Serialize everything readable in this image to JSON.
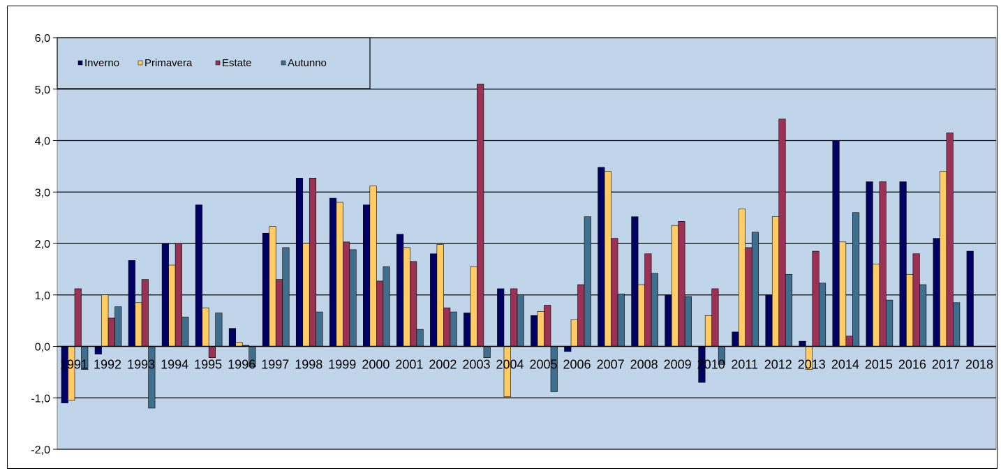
{
  "chart_data": {
    "type": "bar",
    "title": "",
    "xlabel": "",
    "ylabel": "",
    "ylim": [
      -2,
      6
    ],
    "yticks": [
      "6,0",
      "5,0",
      "4,0",
      "3,0",
      "2,0",
      "1,0",
      "0,0",
      "-1,0",
      "-2,0"
    ],
    "ytick_values": [
      6,
      5,
      4,
      3,
      2,
      1,
      0,
      -1,
      -2
    ],
    "grid": true,
    "legend_position": "top-left",
    "plot_background": "#c0d4ea",
    "categories": [
      "1991",
      "1992",
      "1993",
      "1994",
      "1995",
      "1996",
      "1997",
      "1998",
      "1999",
      "2000",
      "2001",
      "2002",
      "2003",
      "2004",
      "2005",
      "2006",
      "2007",
      "2008",
      "2009",
      "2010",
      "2011",
      "2012",
      "2013",
      "2014",
      "2015",
      "2016",
      "2017",
      "2018"
    ],
    "series": [
      {
        "name": "Inverno",
        "color": "#000066",
        "values": [
          -1.1,
          -0.15,
          1.67,
          2.0,
          2.75,
          0.35,
          2.2,
          3.27,
          2.88,
          2.75,
          2.18,
          1.8,
          0.65,
          1.12,
          0.6,
          -0.1,
          3.48,
          2.52,
          1.0,
          -0.7,
          0.28,
          1.0,
          0.1,
          4.0,
          3.2,
          3.2,
          2.1,
          1.85
        ]
      },
      {
        "name": "Primavera",
        "color": "#ffcc66",
        "values": [
          -1.05,
          1.0,
          0.85,
          1.58,
          0.75,
          0.08,
          2.33,
          2.0,
          2.8,
          3.12,
          1.92,
          1.98,
          1.55,
          -0.98,
          0.68,
          0.52,
          3.4,
          1.2,
          2.35,
          0.6,
          2.67,
          2.52,
          -0.45,
          2.03,
          1.6,
          1.4,
          3.4,
          null
        ]
      },
      {
        "name": "Estate",
        "color": "#993355",
        "values": [
          1.12,
          0.55,
          1.3,
          2.0,
          -0.22,
          0.02,
          1.3,
          3.27,
          2.03,
          1.27,
          1.65,
          0.75,
          5.1,
          1.12,
          0.8,
          1.2,
          2.1,
          1.8,
          2.43,
          1.12,
          1.92,
          4.42,
          1.85,
          0.2,
          3.2,
          1.8,
          4.15,
          null
        ]
      },
      {
        "name": "Autunno",
        "color": "#3e6f8e",
        "values": [
          -0.45,
          0.77,
          -1.2,
          0.57,
          0.65,
          -0.4,
          1.92,
          0.67,
          1.88,
          1.55,
          0.33,
          0.67,
          -0.22,
          1.0,
          -0.88,
          2.52,
          1.02,
          1.42,
          0.97,
          -0.35,
          2.22,
          1.4,
          1.23,
          2.6,
          0.9,
          1.2,
          0.85,
          null
        ]
      }
    ]
  }
}
